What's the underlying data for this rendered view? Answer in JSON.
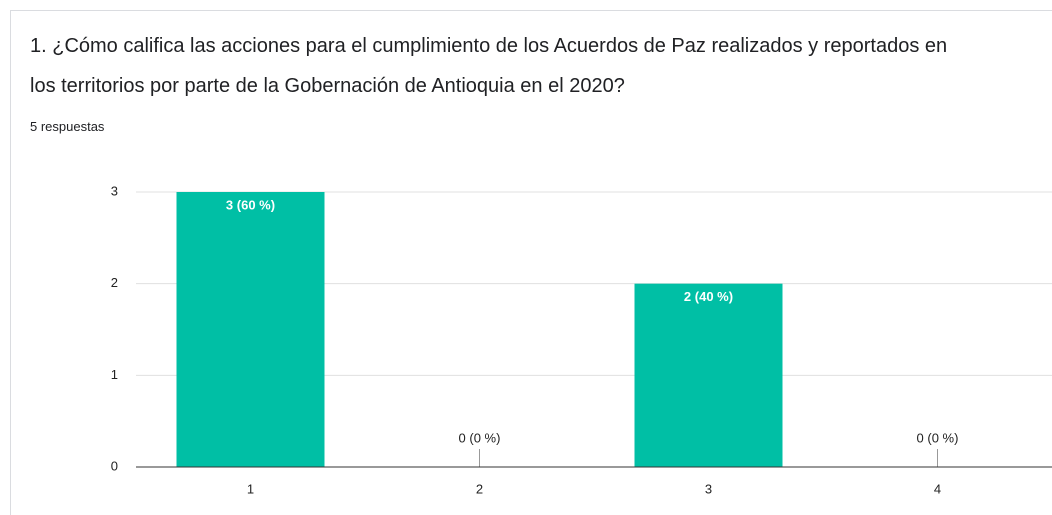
{
  "chart_data": {
    "type": "bar",
    "title": "1. ¿Cómo califica las acciones para el cumplimiento de los Acuerdos de Paz realizados y reportados en los territorios por parte de la Gobernación de Antioquia en el 2020?",
    "subtitle": "5 respuestas",
    "categories": [
      "1",
      "2",
      "3",
      "4"
    ],
    "values": [
      3,
      0,
      2,
      0
    ],
    "value_labels": [
      "3 (60 %)",
      "0 (0 %)",
      "2 (40 %)",
      "0 (0 %)"
    ],
    "color": "#00bfa5",
    "ylim": [
      0,
      3
    ],
    "yticks": [
      0,
      1,
      2,
      3
    ],
    "grid": true
  }
}
